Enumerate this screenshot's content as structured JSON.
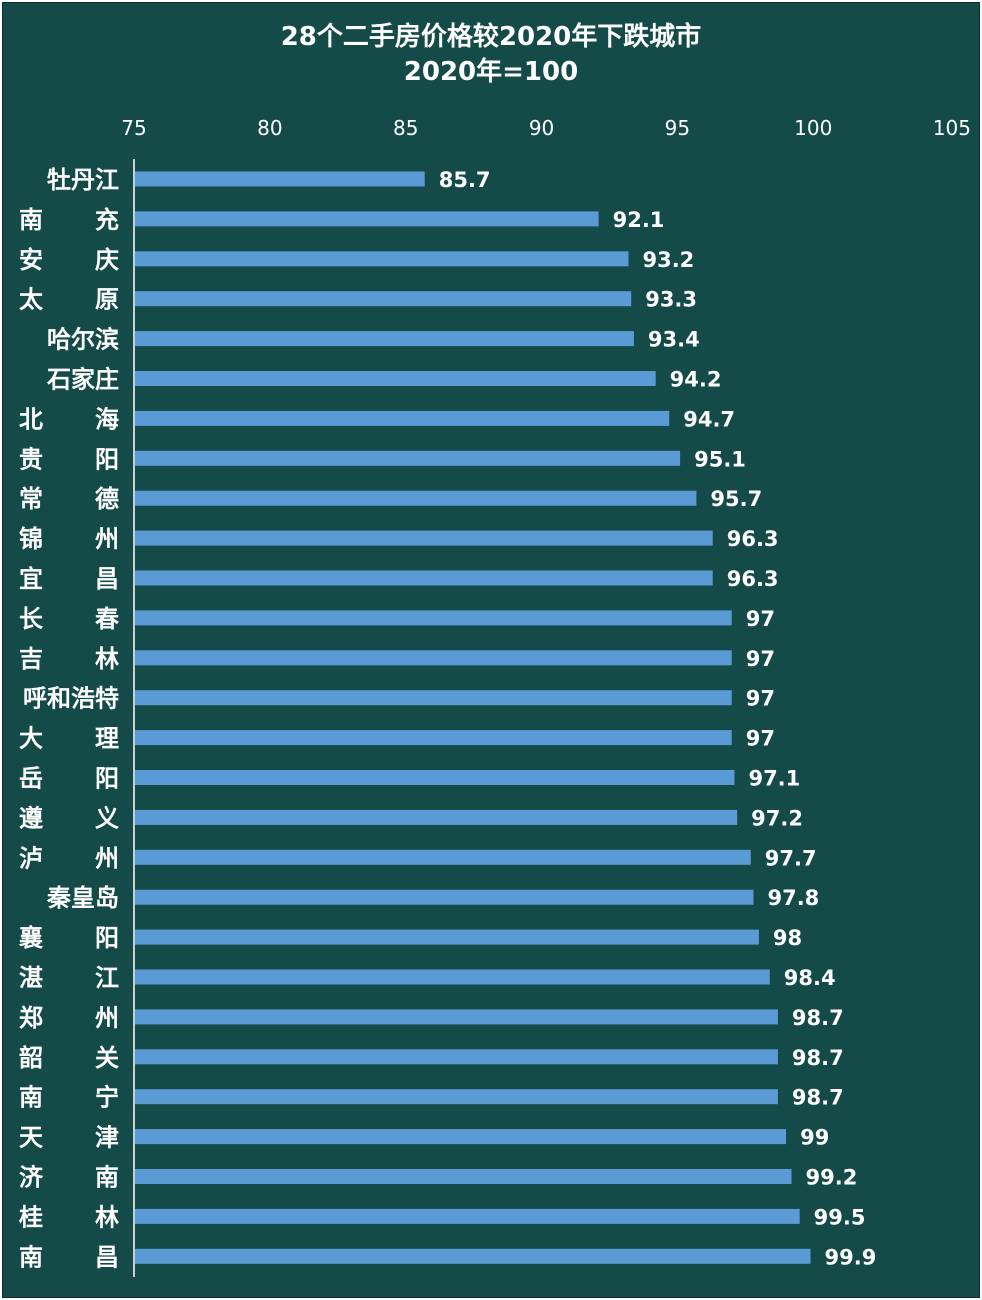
{
  "chart_data": {
    "type": "bar",
    "orientation": "horizontal",
    "title": "28个二手房价格较2020年下跌城市",
    "subtitle": "2020年=100",
    "xlim": [
      75,
      105
    ],
    "x_ticks": [
      "75",
      "80",
      "85",
      "90",
      "95",
      "100",
      "105"
    ],
    "x_tick_values": [
      75,
      80,
      85,
      90,
      95,
      100,
      105
    ],
    "axis_position": "top",
    "grid": false,
    "bar_color": "#5b9bd5",
    "background_color": "#144a48",
    "categories": [
      [
        "牡丹江"
      ],
      [
        "南",
        "充"
      ],
      [
        "安",
        "庆"
      ],
      [
        "太",
        "原"
      ],
      [
        "哈尔滨"
      ],
      [
        "石家庄"
      ],
      [
        "北",
        "海"
      ],
      [
        "贵",
        "阳"
      ],
      [
        "常",
        "德"
      ],
      [
        "锦",
        "州"
      ],
      [
        "宜",
        "昌"
      ],
      [
        "长",
        "春"
      ],
      [
        "吉",
        "林"
      ],
      [
        "呼和浩特"
      ],
      [
        "大",
        "理"
      ],
      [
        "岳",
        "阳"
      ],
      [
        "遵",
        "义"
      ],
      [
        "泸",
        "州"
      ],
      [
        "秦皇岛"
      ],
      [
        "襄",
        "阳"
      ],
      [
        "湛",
        "江"
      ],
      [
        "郑",
        "州"
      ],
      [
        "韶",
        "关"
      ],
      [
        "南",
        "宁"
      ],
      [
        "天",
        "津"
      ],
      [
        "济",
        "南"
      ],
      [
        "桂",
        "林"
      ],
      [
        "南",
        "昌"
      ]
    ],
    "values": [
      85.7,
      92.1,
      93.2,
      93.3,
      93.4,
      94.2,
      94.7,
      95.1,
      95.7,
      96.3,
      96.3,
      97,
      97,
      97,
      97,
      97.1,
      97.2,
      97.7,
      97.8,
      98,
      98.4,
      98.7,
      98.7,
      98.7,
      99,
      99.2,
      99.5,
      99.9
    ],
    "labels": [
      "85.7",
      "92.1",
      "93.2",
      "93.3",
      "93.4",
      "94.2",
      "94.7",
      "95.1",
      "95.7",
      "96.3",
      "96.3",
      "97",
      "97",
      "97",
      "97",
      "97.1",
      "97.2",
      "97.7",
      "97.8",
      "98",
      "98.4",
      "98.7",
      "98.7",
      "98.7",
      "99",
      "99.2",
      "99.5",
      "99.9"
    ]
  }
}
